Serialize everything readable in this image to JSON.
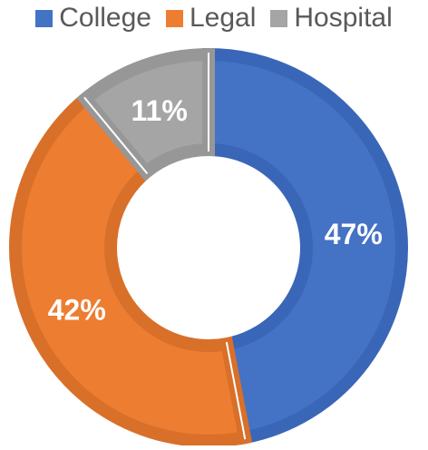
{
  "chart_data": {
    "type": "pie",
    "donut": true,
    "categories": [
      "College",
      "Legal",
      "Hospital"
    ],
    "values": [
      47,
      42,
      11
    ],
    "labels": [
      "47%",
      "42%",
      "11%"
    ],
    "colors": [
      "#4472c4",
      "#ed7d31",
      "#a5a5a5"
    ],
    "edge_colors": [
      "#3a66b8",
      "#d8702a",
      "#979797"
    ],
    "legend_position": "top",
    "title": ""
  }
}
